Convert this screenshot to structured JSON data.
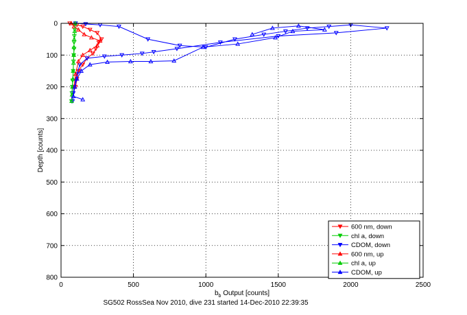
{
  "chart_data": {
    "type": "scatter",
    "xlabel": "b",
    "xlabel_sub": "b",
    "xlabel_rest": " Output [counts]",
    "ylabel": "Depth [counts]",
    "caption": "SG502 RossSea Nov 2010, dive 231 started 14-Dec-2010 22:39:35",
    "xlim": [
      0,
      2500
    ],
    "ylim": [
      0,
      800
    ],
    "y_reversed": true,
    "grid": true,
    "legend_position": "bottom-right",
    "xticks": [
      "0",
      "500",
      "1000",
      "1500",
      "2000",
      "2500"
    ],
    "yticks": [
      "0",
      "100",
      "200",
      "300",
      "400",
      "500",
      "600",
      "700",
      "800"
    ],
    "series": [
      {
        "name": "600 nm, down",
        "color": "#ff0000",
        "marker": "triangle-down",
        "x": [
          60,
          110,
          150,
          200,
          250,
          280,
          260,
          240,
          220,
          180,
          150,
          120,
          110,
          100
        ],
        "y": [
          0,
          5,
          10,
          20,
          30,
          50,
          60,
          80,
          95,
          110,
          130,
          150,
          175,
          200
        ]
      },
      {
        "name": "chl a, down",
        "color": "#00cc00",
        "marker": "triangle-down",
        "x": [
          100,
          95,
          92,
          90,
          90,
          88,
          86,
          84,
          80,
          78,
          75,
          72
        ],
        "y": [
          0,
          20,
          40,
          60,
          80,
          100,
          120,
          150,
          180,
          200,
          220,
          245
        ]
      },
      {
        "name": "CDOM, down",
        "color": "#0000ff",
        "marker": "triangle-down",
        "x": [
          100,
          170,
          270,
          400,
          600,
          820,
          1000,
          1200,
          1400,
          1550,
          1700,
          1850,
          2000,
          2250,
          1900,
          1500,
          1100,
          800,
          640,
          560,
          420,
          300,
          180,
          130,
          110,
          100,
          90,
          85,
          80
        ],
        "y": [
          0,
          2,
          5,
          10,
          50,
          70,
          75,
          50,
          35,
          25,
          15,
          10,
          5,
          15,
          30,
          40,
          60,
          80,
          90,
          95,
          100,
          104,
          110,
          130,
          160,
          180,
          200,
          220,
          245
        ]
      },
      {
        "name": "600 nm, up",
        "color": "#ff0000",
        "marker": "triangle-up",
        "x": [
          70,
          90,
          120,
          160,
          210,
          270,
          250,
          200,
          150,
          120,
          100,
          90
        ],
        "y": [
          0,
          10,
          20,
          35,
          45,
          55,
          70,
          85,
          100,
          120,
          160,
          200
        ]
      },
      {
        "name": "chl a, up",
        "color": "#00cc00",
        "marker": "triangle-up",
        "x": [
          98,
          94,
          91,
          89,
          88,
          86,
          84,
          82,
          79,
          76,
          73
        ],
        "y": [
          0,
          25,
          50,
          75,
          100,
          125,
          150,
          175,
          200,
          225,
          245
        ]
      },
      {
        "name": "CDOM, up",
        "color": "#0000ff",
        "marker": "triangle-up",
        "x": [
          1320,
          1460,
          1640,
          1820,
          1600,
          1480,
          1220,
          980,
          780,
          620,
          480,
          320,
          200,
          140,
          110,
          95,
          85,
          150
        ],
        "y": [
          35,
          15,
          8,
          20,
          25,
          45,
          65,
          75,
          118,
          120,
          120,
          122,
          130,
          150,
          175,
          200,
          230,
          240
        ]
      }
    ]
  }
}
